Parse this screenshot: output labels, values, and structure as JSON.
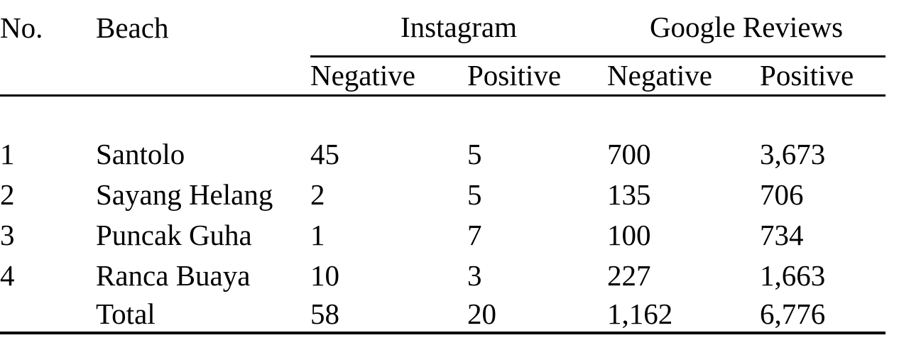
{
  "colors": {
    "background": "#ffffff",
    "text": "#000000",
    "rule": "#000000"
  },
  "table": {
    "headers": {
      "no": "No.",
      "beach": "Beach",
      "group_instagram": "Instagram",
      "group_google": "Google Reviews",
      "sub_instagram_negative": "Negative",
      "sub_instagram_positive": "Positive",
      "sub_google_negative": "Negative",
      "sub_google_positive": "Positive"
    },
    "rows": [
      {
        "no": "1",
        "beach": "Santolo",
        "instagram_negative": "45",
        "instagram_positive": "5",
        "google_negative": "700",
        "google_positive": "3,673"
      },
      {
        "no": "2",
        "beach": "Sayang Helang",
        "instagram_negative": "2",
        "instagram_positive": "5",
        "google_negative": "135",
        "google_positive": "706"
      },
      {
        "no": "3",
        "beach": "Puncak Guha",
        "instagram_negative": "1",
        "instagram_positive": "7",
        "google_negative": "100",
        "google_positive": "734"
      },
      {
        "no": "4",
        "beach": "Ranca Buaya",
        "instagram_negative": "10",
        "instagram_positive": "3",
        "google_negative": "227",
        "google_positive": "1,663"
      }
    ],
    "total_row": {
      "label": "Total",
      "instagram_negative": "58",
      "instagram_positive": "20",
      "google_negative": "1,162",
      "google_positive": "6,776"
    }
  }
}
